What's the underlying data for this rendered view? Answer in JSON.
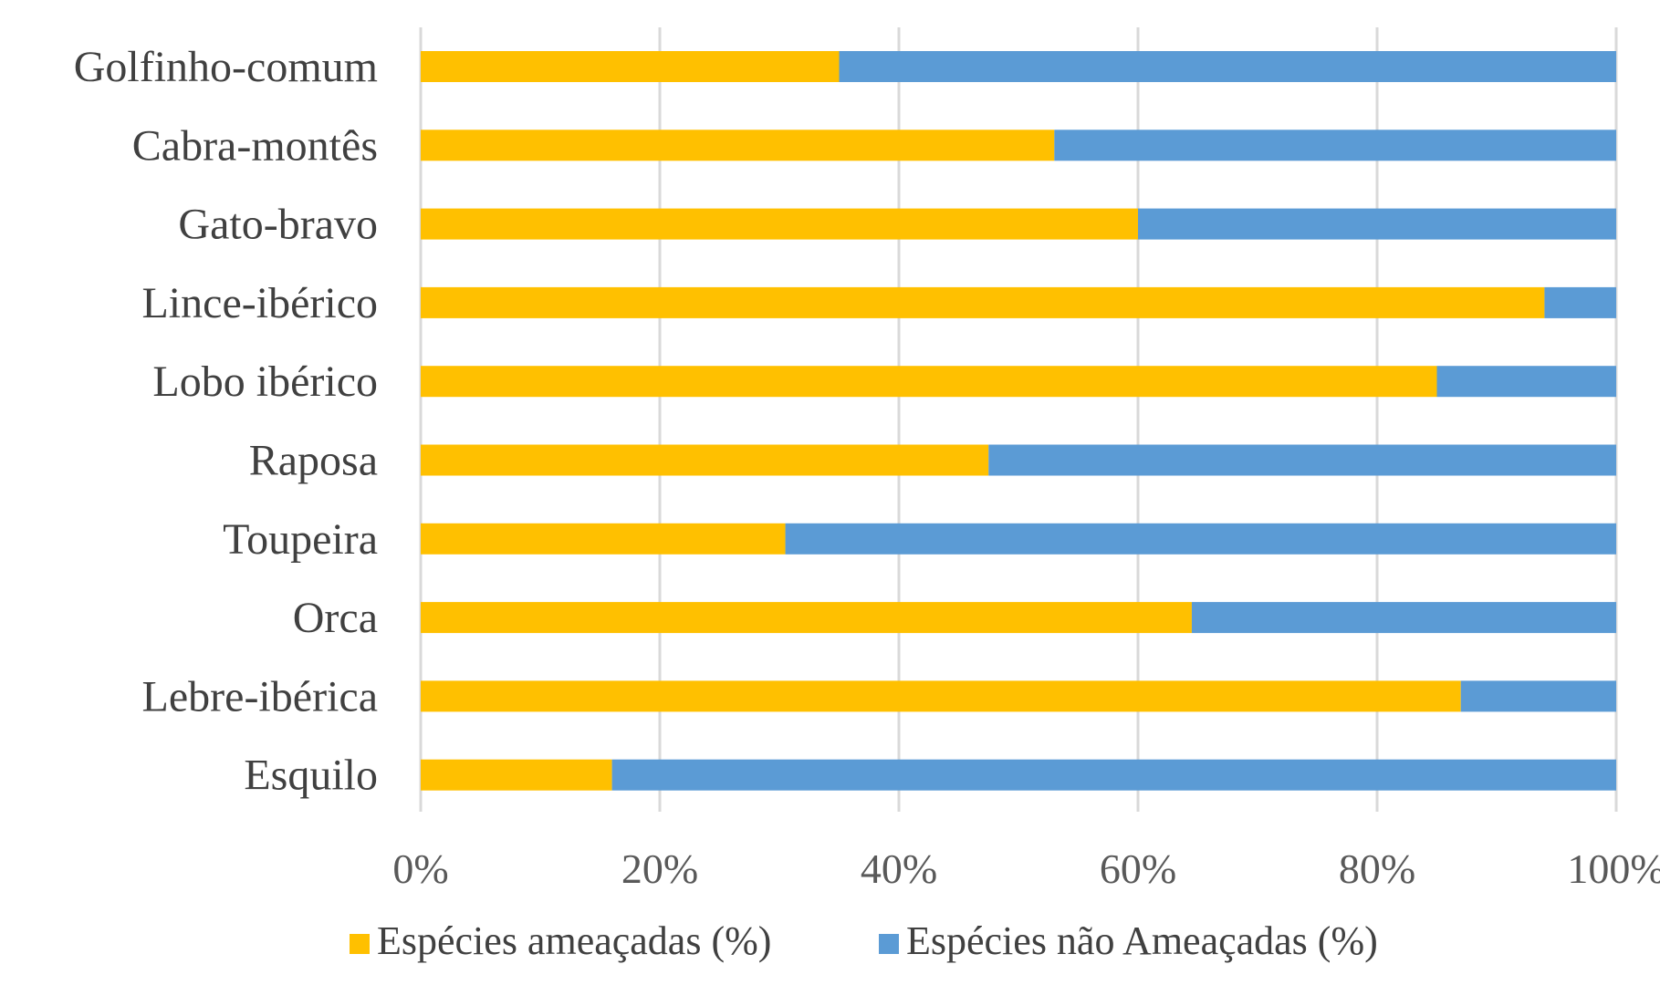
{
  "chart_data": {
    "type": "bar",
    "orientation": "horizontal",
    "stacked": "percent",
    "title": "",
    "xlabel": "",
    "ylabel": "",
    "categories": [
      "Golfinho-comum",
      "Cabra-montês",
      "Gato-bravo",
      "Lince-ibérico",
      "Lobo ibérico",
      "Raposa",
      "Toupeira",
      "Orca",
      "Lebre-ibérica",
      "Esquilo"
    ],
    "series": [
      {
        "name": "Espécies ameaçadas (%)",
        "color": "#FFC000",
        "values": [
          35,
          53,
          60,
          94,
          85,
          47.5,
          30.5,
          64.5,
          87,
          16
        ]
      },
      {
        "name": "Espécies não Ameaçadas (%)",
        "color": "#5B9BD5",
        "values": [
          65,
          47,
          40,
          6,
          15,
          52.5,
          69.5,
          35.5,
          13,
          84
        ]
      }
    ],
    "xlim": [
      0,
      100
    ],
    "x_ticks": [
      0,
      20,
      40,
      60,
      80,
      100
    ],
    "x_tick_labels": [
      "0%",
      "20%",
      "40%",
      "60%",
      "80%",
      "100%"
    ],
    "grid": true,
    "legend_position": "bottom"
  }
}
